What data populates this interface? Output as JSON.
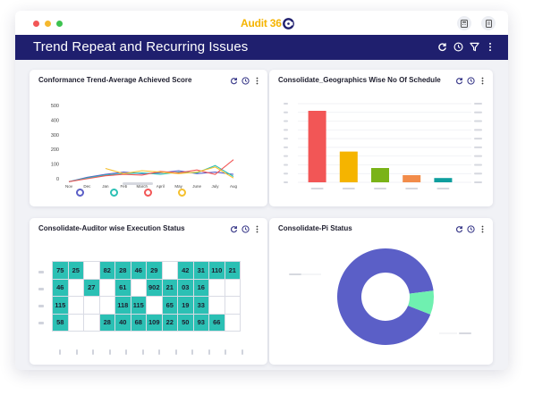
{
  "window": {
    "logo_text": "Audit 36",
    "controls": {
      "close_color": "#f25656",
      "minimize_color": "#f5b82e",
      "maximize_color": "#3cc24f"
    },
    "titlebar_buttons": [
      "calculator-icon",
      "document-icon"
    ]
  },
  "header": {
    "title": "Trend Repeat and Recurring Issues",
    "background": "#1f1f6e",
    "tools": [
      "refresh-icon",
      "clock-icon",
      "filter-icon",
      "more-icon"
    ]
  },
  "cards": {
    "trend": {
      "title": "Conformance Trend-Average Achieved Score",
      "tools": [
        "refresh-icon",
        "clock-icon",
        "more-icon"
      ]
    },
    "geographies": {
      "title": "Consolidate_Geographics Wise No Of Schedule",
      "tools": [
        "refresh-icon",
        "clock-icon",
        "more-icon"
      ]
    },
    "auditor": {
      "title": "Consolidate-Auditor wise Execution Status",
      "tools": [
        "refresh-icon",
        "clock-icon",
        "more-icon"
      ]
    },
    "pi": {
      "title": "Consolidate-Pi Status",
      "tools": [
        "refresh-icon",
        "clock-icon",
        "more-icon"
      ]
    }
  },
  "chart_data": [
    {
      "type": "line",
      "title": "Conformance Trend-Average Achieved Score",
      "x": [
        "Nov",
        "Dec",
        "Jan",
        "Feb",
        "March",
        "April",
        "May",
        "June",
        "July",
        "Aug"
      ],
      "y_ticks": [
        "500",
        "400",
        "300",
        "200",
        "100",
        "0"
      ],
      "ylim": [
        0,
        500
      ],
      "series": [
        {
          "color": "#5b5fc7",
          "values": [
            -20,
            10,
            30,
            45,
            35,
            40,
            55,
            35,
            45,
            30
          ]
        },
        {
          "color": "#2bc0b4",
          "values": [
            -20,
            5,
            25,
            35,
            40,
            30,
            45,
            40,
            90,
            15
          ]
        },
        {
          "color": "#f25656",
          "values": [
            -20,
            0,
            20,
            30,
            25,
            50,
            40,
            60,
            30,
            130
          ]
        },
        {
          "color": "#f5c02e",
          "values": [
            null,
            null,
            70,
            35,
            55,
            45,
            35,
            45,
            80,
            5
          ]
        }
      ],
      "legend_colors": [
        "#5b5fc7",
        "#2bc0b4",
        "#f25656",
        "#f5c02e"
      ]
    },
    {
      "type": "bar",
      "title": "Consolidate_Geographics Wise No Of Schedule",
      "values": [
        100,
        43,
        20,
        10,
        6
      ],
      "ylim": [
        0,
        110
      ],
      "colors": [
        "#f25656",
        "#f5b400",
        "#7ab317",
        "#f28c4a",
        "#0e9e9e"
      ]
    },
    {
      "type": "heatmap",
      "title": "Consolidate-Auditor wise Execution Status",
      "rows": [
        [
          "75",
          "25",
          "",
          "82",
          "28",
          "46",
          "29",
          "",
          "42",
          "31",
          "110",
          "21"
        ],
        [
          "46",
          "",
          "27",
          "",
          "61",
          "",
          "902",
          "21",
          "03",
          "16",
          "",
          ""
        ],
        [
          "115",
          "",
          "",
          "",
          "118",
          "115",
          "",
          "65",
          "19",
          "33",
          "",
          ""
        ],
        [
          "58",
          "",
          "",
          "28",
          "40",
          "68",
          "109",
          "22",
          "50",
          "93",
          "66",
          ""
        ]
      ],
      "filled": [
        [
          1,
          1,
          0,
          1,
          1,
          1,
          1,
          0,
          1,
          1,
          1,
          1
        ],
        [
          1,
          0,
          1,
          0,
          1,
          0,
          1,
          1,
          1,
          1,
          0,
          0
        ],
        [
          1,
          0,
          0,
          0,
          1,
          1,
          0,
          1,
          1,
          1,
          0,
          0
        ],
        [
          1,
          0,
          0,
          1,
          1,
          1,
          1,
          1,
          1,
          1,
          1,
          0
        ]
      ],
      "fill_color": "#2bc0b4"
    },
    {
      "type": "pie",
      "title": "Consolidate-Pi Status",
      "donut": true,
      "slices": [
        {
          "value": 92,
          "color": "#5b5fc7"
        },
        {
          "value": 8,
          "color": "#6ff0b0"
        }
      ]
    }
  ]
}
